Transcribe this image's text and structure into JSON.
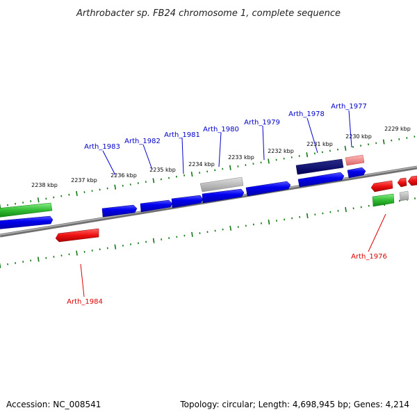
{
  "title": "Arthrobacter sp. FB24 chromosome 1, complete sequence",
  "footer": {
    "accession": "Accession: NC_008541",
    "topology": "Topology: circular; Length: 4,698,945 bp; Genes: 4,214"
  },
  "colors": {
    "backbone": "#808080",
    "cds_blue": "#0000ee",
    "cds_darkblue": "#000080",
    "pseudo_gray": "#bbbbbb",
    "green": "#33bb33",
    "red": "#ee1111",
    "pink": "#ee8888",
    "ticks": "#117711",
    "label_blue": "#0000cc",
    "label_red": "#dd0000"
  },
  "kbp_labels": [
    "2229 kbp",
    "2230 kbp",
    "2231 kbp",
    "2232 kbp",
    "2233 kbp",
    "2234 kbp",
    "2235 kbp",
    "2236 kbp",
    "2237 kbp",
    "2238 kbp"
  ],
  "gene_labels_top": [
    "Arth_1983",
    "Arth_1982",
    "Arth_1981",
    "Arth_1980",
    "Arth_1979",
    "Arth_1978",
    "Arth_1977"
  ],
  "gene_labels_bottom": [
    "Arth_1976",
    "Arth_1984"
  ]
}
